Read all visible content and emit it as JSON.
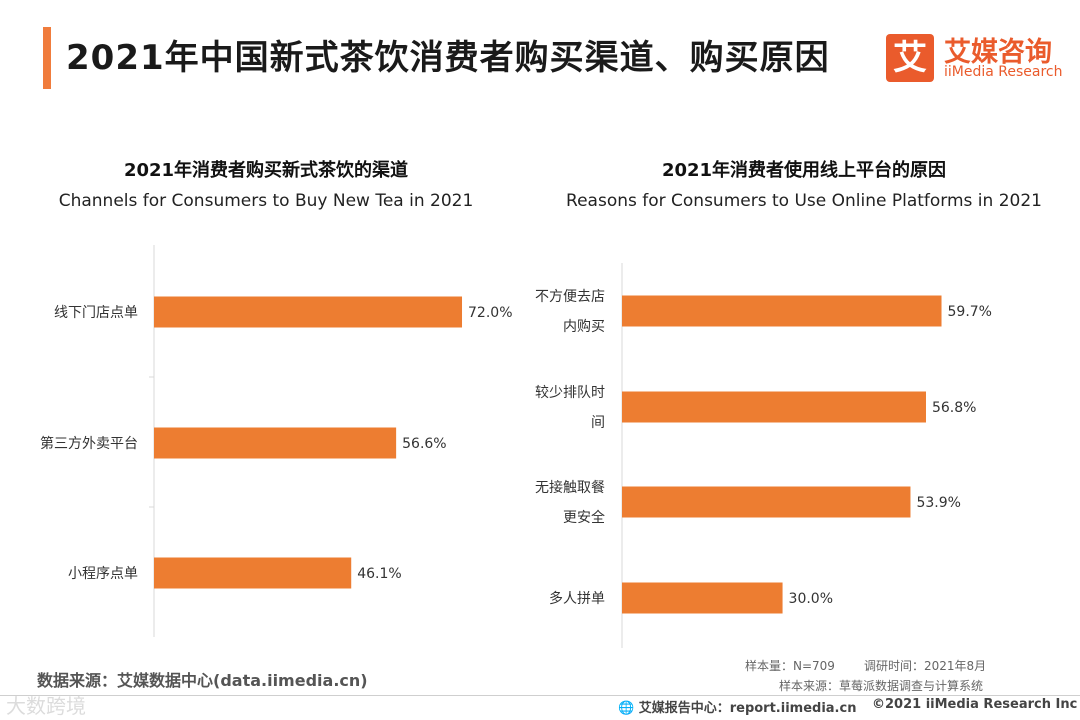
{
  "page_title": "2021年中国新式茶饮消费者购买渠道、购买原因",
  "logo": {
    "mark": "艾",
    "cn": "艾媒咨询",
    "en": "iiMedia Research"
  },
  "colors": {
    "accent": "#f07c3c",
    "bar": "#ed7d31",
    "logo": "#ea5b2c"
  },
  "chart_data": [
    {
      "type": "bar",
      "orientation": "horizontal",
      "title": "2021年消费者购买新式茶饮的渠道",
      "subtitle": "Channels for Consumers to Buy New Tea in 2021",
      "categories": [
        [
          "线下门店点单"
        ],
        [
          "第三方外卖平台"
        ],
        [
          "小程序点单"
        ]
      ],
      "values": [
        72.0,
        56.6,
        46.1
      ],
      "value_labels": [
        "72.0%",
        "56.6%",
        "46.1%"
      ],
      "unit": "%",
      "xlim": [
        0,
        100
      ]
    },
    {
      "type": "bar",
      "orientation": "horizontal",
      "title": "2021年消费者使用线上平台的原因",
      "subtitle": "Reasons for Consumers to Use Online Platforms in 2021",
      "categories": [
        [
          "不方便去店",
          "内购买"
        ],
        [
          "较少排队时",
          "间"
        ],
        [
          "无接触取餐",
          "更安全"
        ],
        [
          "多人拼单"
        ]
      ],
      "values": [
        59.7,
        56.8,
        53.9,
        30.0
      ],
      "value_labels": [
        "59.7%",
        "56.8%",
        "53.9%",
        "30.0%"
      ],
      "unit": "%",
      "xlim": [
        0,
        100
      ]
    }
  ],
  "source": "数据来源：艾媒数据中心(data.iimedia.cn)",
  "sample": "样本量：N=709",
  "survey_time": "调研时间：2021年8月",
  "sample_source": "样本来源：草莓派数据调查与计算系统",
  "footer_center": "艾媒报告中心：report.iimedia.cn",
  "footer_right": "©2021  iiMedia Research  Inc",
  "watermark": "大数跨境"
}
